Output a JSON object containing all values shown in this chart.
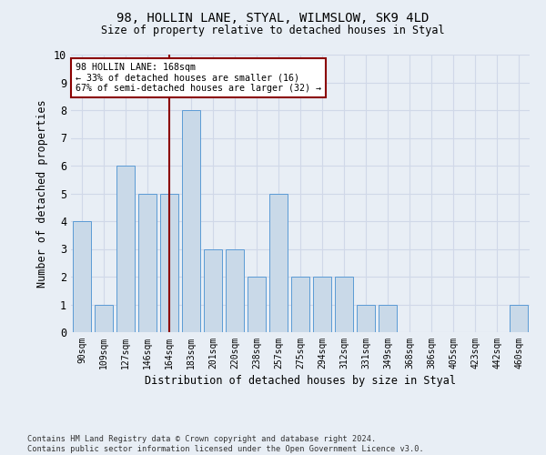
{
  "title1": "98, HOLLIN LANE, STYAL, WILMSLOW, SK9 4LD",
  "title2": "Size of property relative to detached houses in Styal",
  "xlabel": "Distribution of detached houses by size in Styal",
  "ylabel": "Number of detached properties",
  "categories": [
    "90sqm",
    "109sqm",
    "127sqm",
    "146sqm",
    "164sqm",
    "183sqm",
    "201sqm",
    "220sqm",
    "238sqm",
    "257sqm",
    "275sqm",
    "294sqm",
    "312sqm",
    "331sqm",
    "349sqm",
    "368sqm",
    "386sqm",
    "405sqm",
    "423sqm",
    "442sqm",
    "460sqm"
  ],
  "values": [
    4,
    1,
    6,
    5,
    5,
    8,
    3,
    3,
    2,
    5,
    2,
    2,
    2,
    1,
    1,
    0,
    0,
    0,
    0,
    0,
    1
  ],
  "bar_color": "#c9d9e8",
  "bar_edge_color": "#5b9bd5",
  "highlight_index": 4,
  "highlight_line_color": "#8b0000",
  "annotation_line1": "98 HOLLIN LANE: 168sqm",
  "annotation_line2": "← 33% of detached houses are smaller (16)",
  "annotation_line3": "67% of semi-detached houses are larger (32) →",
  "annotation_box_color": "#ffffff",
  "annotation_box_edge": "#8b0000",
  "ylim": [
    0,
    10
  ],
  "yticks": [
    0,
    1,
    2,
    3,
    4,
    5,
    6,
    7,
    8,
    9,
    10
  ],
  "grid_color": "#d0d8e8",
  "background_color": "#e8eef5",
  "footer1": "Contains HM Land Registry data © Crown copyright and database right 2024.",
  "footer2": "Contains public sector information licensed under the Open Government Licence v3.0."
}
